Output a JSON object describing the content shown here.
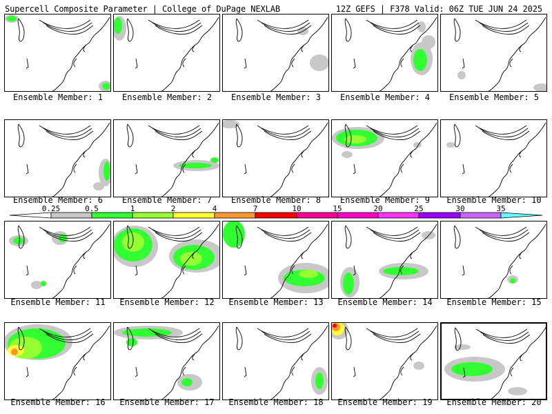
{
  "header": {
    "title": "Supercell Composite Parameter | College of DuPage NEXLAB",
    "run_info": "12Z GEFS | F378 Valid: 06Z TUE JUN 24 2025"
  },
  "colorbar": {
    "levels": [
      "0.25",
      "0.5",
      "1",
      "2",
      "4",
      "7",
      "10",
      "15",
      "20",
      "25",
      "30",
      "35"
    ],
    "colors": [
      "#c8c8c8",
      "#32ff32",
      "#96ff32",
      "#ffff32",
      "#ff9632",
      "#ff0000",
      "#ff0096",
      "#ff00c8",
      "#ff32ff",
      "#9600ff",
      "#c864ff",
      "#64ffff"
    ]
  },
  "members": [
    {
      "label": "Ensemble Member: 1"
    },
    {
      "label": "Ensemble Member: 2"
    },
    {
      "label": "Ensemble Member: 3"
    },
    {
      "label": "Ensemble Member: 4"
    },
    {
      "label": "Ensemble Member: 5"
    },
    {
      "label": "Ensemble Member: 6"
    },
    {
      "label": "Ensemble Member: 7"
    },
    {
      "label": "Ensemble Member: 8"
    },
    {
      "label": "Ensemble Member: 9"
    },
    {
      "label": "Ensemble Member: 10"
    },
    {
      "label": "Ensemble Member: 11"
    },
    {
      "label": "Ensemble Member: 12"
    },
    {
      "label": "Ensemble Member: 13"
    },
    {
      "label": "Ensemble Member: 14"
    },
    {
      "label": "Ensemble Member: 15"
    },
    {
      "label": "Ensemble Member: 16"
    },
    {
      "label": "Ensemble Member: 17"
    },
    {
      "label": "Ensemble Member: 18"
    },
    {
      "label": "Ensemble Member: 19"
    },
    {
      "label": "Ensemble Member: 20"
    }
  ]
}
